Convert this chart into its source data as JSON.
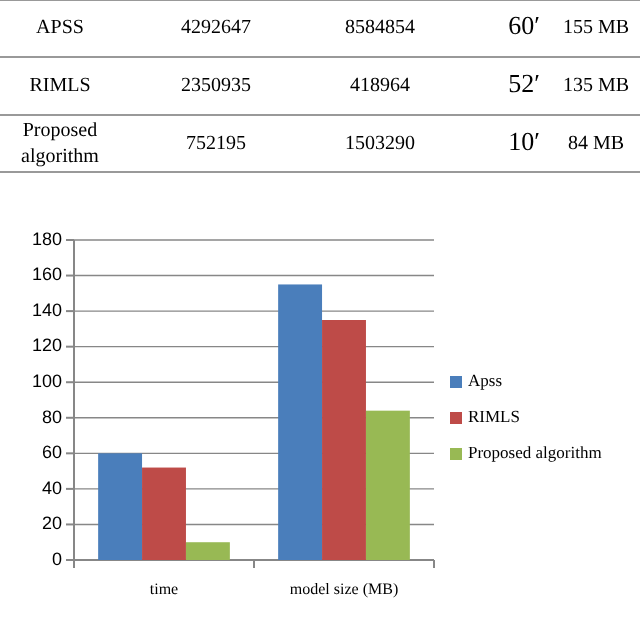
{
  "chart_data": [
    {
      "type": "other",
      "annotations": [
        "APSS",
        "4292647",
        "8584854",
        "60′",
        "155 MB",
        "RIMLS",
        "2350935",
        "418964",
        "52′",
        "135 MB",
        "Proposed algorithm",
        "752195",
        "1503290",
        "10′",
        "84 MB"
      ]
    },
    {
      "type": "bar",
      "categories": [
        "time",
        "model size (MB)"
      ],
      "series": [
        {
          "name": "Apss",
          "color": "#4a7ebb",
          "values": [
            60,
            155
          ]
        },
        {
          "name": "RIMLS",
          "color": "#be4b48",
          "values": [
            52,
            135
          ]
        },
        {
          "name": "Proposed algorithm",
          "color": "#98b954",
          "values": [
            10,
            84
          ]
        }
      ],
      "ylim": [
        0,
        180
      ],
      "yticks": [
        0,
        20,
        40,
        60,
        80,
        100,
        120,
        140,
        160,
        180
      ],
      "grid": "y",
      "legend": "right"
    }
  ]
}
